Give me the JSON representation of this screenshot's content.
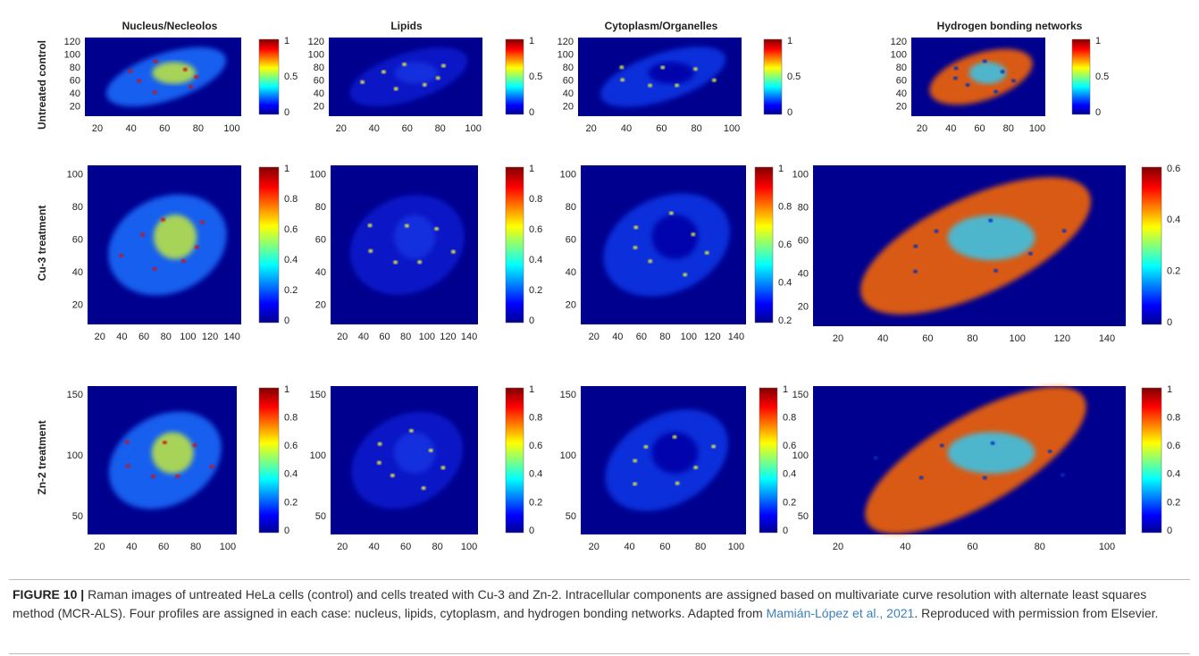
{
  "columns": [
    "Nucleus/Necleolos",
    "Lipids",
    "Cytoplasm/Organelles",
    "Hydrogen bonding networks"
  ],
  "rows": [
    {
      "label": "Untreated control",
      "panels": [
        {
          "xticks": [
            20,
            40,
            60,
            80,
            100
          ],
          "yticks": [
            120,
            100,
            80,
            60,
            40,
            20
          ],
          "cbar": [
            1,
            0.5,
            0
          ]
        },
        {
          "xticks": [
            20,
            40,
            60,
            80,
            100
          ],
          "yticks": [
            120,
            100,
            80,
            60,
            40,
            20
          ],
          "cbar": [
            1,
            0.5,
            0
          ]
        },
        {
          "xticks": [
            20,
            40,
            60,
            80,
            100
          ],
          "yticks": [
            120,
            100,
            80,
            60,
            40,
            20
          ],
          "cbar": [
            1,
            0.5,
            0
          ]
        },
        {
          "xticks": [
            20,
            40,
            60,
            80,
            100
          ],
          "yticks": [
            120,
            100,
            80,
            60,
            40,
            20
          ],
          "cbar": [
            1,
            0.5,
            0
          ]
        }
      ]
    },
    {
      "label": "Cu-3 treatment",
      "panels": [
        {
          "xticks": [
            20,
            40,
            60,
            80,
            100,
            120,
            140
          ],
          "yticks": [
            100,
            80,
            60,
            40,
            20
          ],
          "cbar": [
            1,
            0.8,
            0.6,
            0.4,
            0.2,
            0
          ]
        },
        {
          "xticks": [
            20,
            40,
            60,
            80,
            100,
            120,
            140
          ],
          "yticks": [
            100,
            80,
            60,
            40,
            20
          ],
          "cbar": [
            1,
            0.8,
            0.6,
            0.4,
            0.2,
            0
          ]
        },
        {
          "xticks": [
            20,
            40,
            60,
            80,
            100,
            120,
            140
          ],
          "yticks": [
            100,
            80,
            60,
            40,
            20
          ],
          "cbar": [
            1,
            0.8,
            0.6,
            0.4,
            0.2
          ]
        },
        {
          "xticks": [
            20,
            40,
            60,
            80,
            100,
            120,
            140
          ],
          "yticks": [
            100,
            80,
            60,
            40,
            20
          ],
          "cbar": [
            0.6,
            0.4,
            0.2,
            0
          ]
        }
      ]
    },
    {
      "label": "Zn-2 treatment",
      "panels": [
        {
          "xticks": [
            20,
            40,
            60,
            80,
            100
          ],
          "yticks": [
            150,
            100,
            50
          ],
          "cbar": [
            1,
            0.8,
            0.6,
            0.4,
            0.2,
            0
          ]
        },
        {
          "xticks": [
            20,
            40,
            60,
            80,
            100
          ],
          "yticks": [
            150,
            100,
            50
          ],
          "cbar": [
            1,
            0.8,
            0.6,
            0.4,
            0.2,
            0
          ]
        },
        {
          "xticks": [
            20,
            40,
            60,
            80,
            100
          ],
          "yticks": [
            150,
            100,
            50
          ],
          "cbar": [
            1,
            0.8,
            0.6,
            0.4,
            0.2,
            0
          ]
        },
        {
          "xticks": [
            20,
            40,
            60,
            80,
            100
          ],
          "yticks": [
            150,
            100,
            50
          ],
          "cbar": [
            1,
            0.8,
            0.6,
            0.4,
            0.2,
            0
          ]
        }
      ]
    }
  ],
  "caption": {
    "label": "FIGURE 10 |",
    "text": "Raman images of untreated HeLa cells (control) and cells treated with Cu-3 and Zn-2. Intracellular components are assigned based on multivariate curve resolution with alternate least squares method (MCR-ALS). Four profiles are assigned in each case: nucleus, lipids, cytoplasm, and hydrogen bonding networks. Adapted from",
    "link": "Mamián-López et al., 2021",
    "text_end": ". Reproduced with permission from Elsevier."
  }
}
